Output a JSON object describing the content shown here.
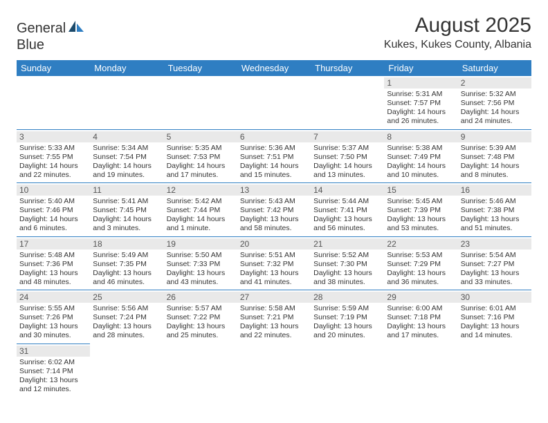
{
  "branding": {
    "logo_text_1": "General",
    "logo_text_2": "Blue",
    "logo_colors": {
      "dark": "#1b4a6b",
      "accent": "#2f7ec2"
    }
  },
  "header": {
    "title": "August 2025",
    "location": "Kukes, Kukes County, Albania"
  },
  "style": {
    "header_bg": "#2f7ec2",
    "header_text": "#ffffff",
    "daynum_bg": "#e9e9e9",
    "daynum_text": "#555555",
    "cell_text": "#333333",
    "divider": "#2f7ec2",
    "page_bg": "#ffffff",
    "title_fontsize": 30,
    "location_fontsize": 16,
    "header_fontsize": 13,
    "cell_fontsize": 10.5
  },
  "weekdays": [
    "Sunday",
    "Monday",
    "Tuesday",
    "Wednesday",
    "Thursday",
    "Friday",
    "Saturday"
  ],
  "grid": [
    [
      {
        "blank": true
      },
      {
        "blank": true
      },
      {
        "blank": true
      },
      {
        "blank": true
      },
      {
        "blank": true
      },
      {
        "day": "1",
        "sunrise": "Sunrise: 5:31 AM",
        "sunset": "Sunset: 7:57 PM",
        "daylight": "Daylight: 14 hours and 26 minutes."
      },
      {
        "day": "2",
        "sunrise": "Sunrise: 5:32 AM",
        "sunset": "Sunset: 7:56 PM",
        "daylight": "Daylight: 14 hours and 24 minutes."
      }
    ],
    [
      {
        "day": "3",
        "sunrise": "Sunrise: 5:33 AM",
        "sunset": "Sunset: 7:55 PM",
        "daylight": "Daylight: 14 hours and 22 minutes."
      },
      {
        "day": "4",
        "sunrise": "Sunrise: 5:34 AM",
        "sunset": "Sunset: 7:54 PM",
        "daylight": "Daylight: 14 hours and 19 minutes."
      },
      {
        "day": "5",
        "sunrise": "Sunrise: 5:35 AM",
        "sunset": "Sunset: 7:53 PM",
        "daylight": "Daylight: 14 hours and 17 minutes."
      },
      {
        "day": "6",
        "sunrise": "Sunrise: 5:36 AM",
        "sunset": "Sunset: 7:51 PM",
        "daylight": "Daylight: 14 hours and 15 minutes."
      },
      {
        "day": "7",
        "sunrise": "Sunrise: 5:37 AM",
        "sunset": "Sunset: 7:50 PM",
        "daylight": "Daylight: 14 hours and 13 minutes."
      },
      {
        "day": "8",
        "sunrise": "Sunrise: 5:38 AM",
        "sunset": "Sunset: 7:49 PM",
        "daylight": "Daylight: 14 hours and 10 minutes."
      },
      {
        "day": "9",
        "sunrise": "Sunrise: 5:39 AM",
        "sunset": "Sunset: 7:48 PM",
        "daylight": "Daylight: 14 hours and 8 minutes."
      }
    ],
    [
      {
        "day": "10",
        "sunrise": "Sunrise: 5:40 AM",
        "sunset": "Sunset: 7:46 PM",
        "daylight": "Daylight: 14 hours and 6 minutes."
      },
      {
        "day": "11",
        "sunrise": "Sunrise: 5:41 AM",
        "sunset": "Sunset: 7:45 PM",
        "daylight": "Daylight: 14 hours and 3 minutes."
      },
      {
        "day": "12",
        "sunrise": "Sunrise: 5:42 AM",
        "sunset": "Sunset: 7:44 PM",
        "daylight": "Daylight: 14 hours and 1 minute."
      },
      {
        "day": "13",
        "sunrise": "Sunrise: 5:43 AM",
        "sunset": "Sunset: 7:42 PM",
        "daylight": "Daylight: 13 hours and 58 minutes."
      },
      {
        "day": "14",
        "sunrise": "Sunrise: 5:44 AM",
        "sunset": "Sunset: 7:41 PM",
        "daylight": "Daylight: 13 hours and 56 minutes."
      },
      {
        "day": "15",
        "sunrise": "Sunrise: 5:45 AM",
        "sunset": "Sunset: 7:39 PM",
        "daylight": "Daylight: 13 hours and 53 minutes."
      },
      {
        "day": "16",
        "sunrise": "Sunrise: 5:46 AM",
        "sunset": "Sunset: 7:38 PM",
        "daylight": "Daylight: 13 hours and 51 minutes."
      }
    ],
    [
      {
        "day": "17",
        "sunrise": "Sunrise: 5:48 AM",
        "sunset": "Sunset: 7:36 PM",
        "daylight": "Daylight: 13 hours and 48 minutes."
      },
      {
        "day": "18",
        "sunrise": "Sunrise: 5:49 AM",
        "sunset": "Sunset: 7:35 PM",
        "daylight": "Daylight: 13 hours and 46 minutes."
      },
      {
        "day": "19",
        "sunrise": "Sunrise: 5:50 AM",
        "sunset": "Sunset: 7:33 PM",
        "daylight": "Daylight: 13 hours and 43 minutes."
      },
      {
        "day": "20",
        "sunrise": "Sunrise: 5:51 AM",
        "sunset": "Sunset: 7:32 PM",
        "daylight": "Daylight: 13 hours and 41 minutes."
      },
      {
        "day": "21",
        "sunrise": "Sunrise: 5:52 AM",
        "sunset": "Sunset: 7:30 PM",
        "daylight": "Daylight: 13 hours and 38 minutes."
      },
      {
        "day": "22",
        "sunrise": "Sunrise: 5:53 AM",
        "sunset": "Sunset: 7:29 PM",
        "daylight": "Daylight: 13 hours and 36 minutes."
      },
      {
        "day": "23",
        "sunrise": "Sunrise: 5:54 AM",
        "sunset": "Sunset: 7:27 PM",
        "daylight": "Daylight: 13 hours and 33 minutes."
      }
    ],
    [
      {
        "day": "24",
        "sunrise": "Sunrise: 5:55 AM",
        "sunset": "Sunset: 7:26 PM",
        "daylight": "Daylight: 13 hours and 30 minutes."
      },
      {
        "day": "25",
        "sunrise": "Sunrise: 5:56 AM",
        "sunset": "Sunset: 7:24 PM",
        "daylight": "Daylight: 13 hours and 28 minutes."
      },
      {
        "day": "26",
        "sunrise": "Sunrise: 5:57 AM",
        "sunset": "Sunset: 7:22 PM",
        "daylight": "Daylight: 13 hours and 25 minutes."
      },
      {
        "day": "27",
        "sunrise": "Sunrise: 5:58 AM",
        "sunset": "Sunset: 7:21 PM",
        "daylight": "Daylight: 13 hours and 22 minutes."
      },
      {
        "day": "28",
        "sunrise": "Sunrise: 5:59 AM",
        "sunset": "Sunset: 7:19 PM",
        "daylight": "Daylight: 13 hours and 20 minutes."
      },
      {
        "day": "29",
        "sunrise": "Sunrise: 6:00 AM",
        "sunset": "Sunset: 7:18 PM",
        "daylight": "Daylight: 13 hours and 17 minutes."
      },
      {
        "day": "30",
        "sunrise": "Sunrise: 6:01 AM",
        "sunset": "Sunset: 7:16 PM",
        "daylight": "Daylight: 13 hours and 14 minutes."
      }
    ],
    [
      {
        "day": "31",
        "sunrise": "Sunrise: 6:02 AM",
        "sunset": "Sunset: 7:14 PM",
        "daylight": "Daylight: 13 hours and 12 minutes."
      },
      {
        "blank": true
      },
      {
        "blank": true
      },
      {
        "blank": true
      },
      {
        "blank": true
      },
      {
        "blank": true
      },
      {
        "blank": true
      }
    ]
  ]
}
